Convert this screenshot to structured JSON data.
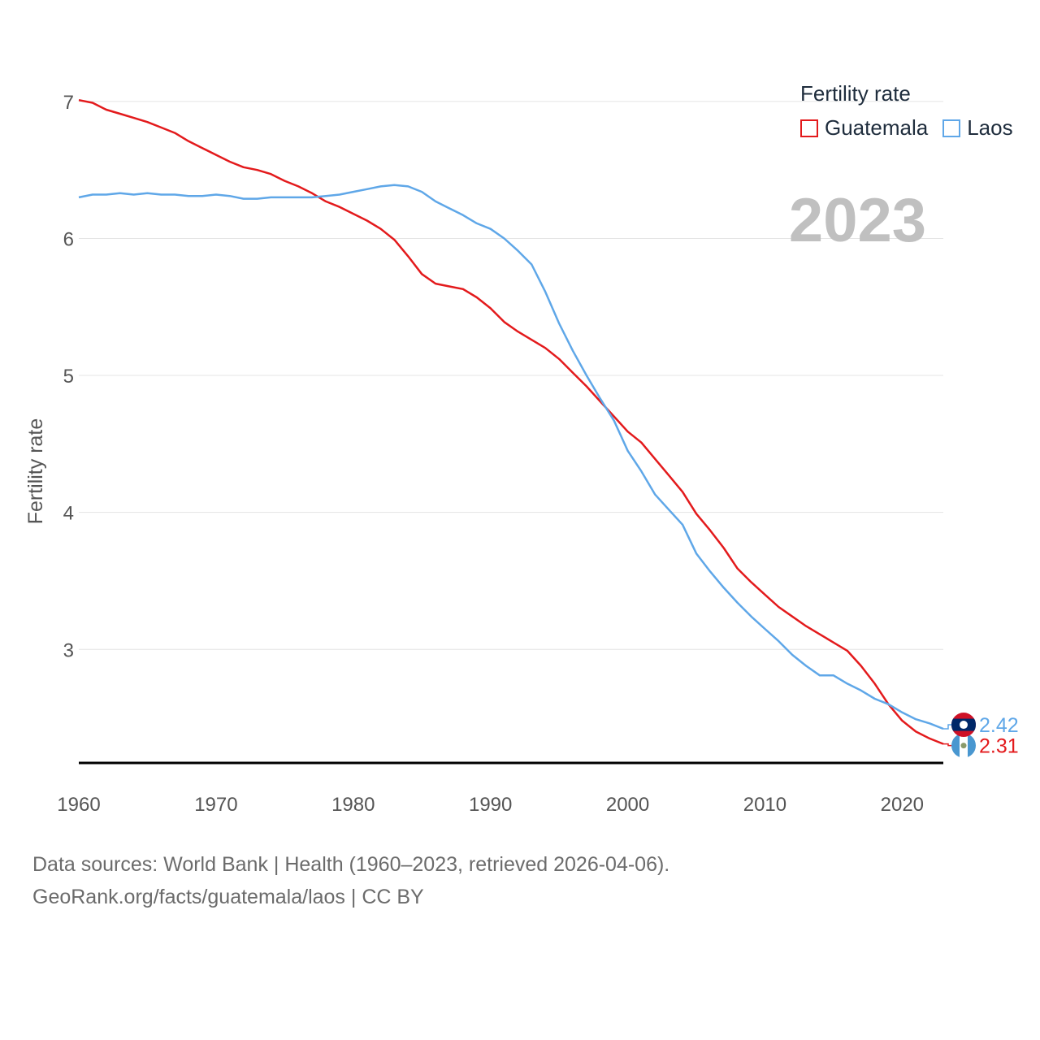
{
  "legend": {
    "title": "Fertility rate"
  },
  "year_stamp": "2023",
  "source": {
    "line1": "Data sources: World Bank | Health (1960–2023, retrieved 2026-04-06).",
    "line2": "GeoRank.org/facts/guatemala/laos | CC BY"
  },
  "chart_data": {
    "type": "line",
    "title": "Fertility rate",
    "xlabel": "",
    "ylabel": "Fertility rate",
    "xlim": [
      1960,
      2023
    ],
    "ylim": [
      2.1,
      7.1
    ],
    "x_ticks": [
      1960,
      1970,
      1980,
      1990,
      2000,
      2010,
      2020
    ],
    "y_ticks": [
      3,
      4,
      5,
      6,
      7
    ],
    "grid": true,
    "legend_position": "top-right",
    "x": [
      1960,
      1961,
      1962,
      1963,
      1964,
      1965,
      1966,
      1967,
      1968,
      1969,
      1970,
      1971,
      1972,
      1973,
      1974,
      1975,
      1976,
      1977,
      1978,
      1979,
      1980,
      1981,
      1982,
      1983,
      1984,
      1985,
      1986,
      1987,
      1988,
      1989,
      1990,
      1991,
      1992,
      1993,
      1994,
      1995,
      1996,
      1997,
      1998,
      1999,
      2000,
      2001,
      2002,
      2003,
      2004,
      2005,
      2006,
      2007,
      2008,
      2009,
      2010,
      2011,
      2012,
      2013,
      2014,
      2015,
      2016,
      2017,
      2018,
      2019,
      2020,
      2021,
      2022,
      2023
    ],
    "series": [
      {
        "name": "Guatemala",
        "color": "#e31a1c",
        "end_label": "2.31",
        "values": [
          7.01,
          6.99,
          6.94,
          6.91,
          6.88,
          6.85,
          6.81,
          6.77,
          6.71,
          6.66,
          6.61,
          6.56,
          6.52,
          6.5,
          6.47,
          6.42,
          6.38,
          6.33,
          6.27,
          6.23,
          6.18,
          6.13,
          6.07,
          5.99,
          5.87,
          5.74,
          5.67,
          5.65,
          5.63,
          5.57,
          5.49,
          5.39,
          5.32,
          5.26,
          5.2,
          5.12,
          5.02,
          4.92,
          4.81,
          4.7,
          4.59,
          4.51,
          4.39,
          4.27,
          4.15,
          3.99,
          3.87,
          3.74,
          3.59,
          3.49,
          3.4,
          3.31,
          3.24,
          3.17,
          3.11,
          3.05,
          2.99,
          2.88,
          2.75,
          2.6,
          2.48,
          2.4,
          2.35,
          2.31
        ]
      },
      {
        "name": "Laos",
        "color": "#5fa7e8",
        "end_label": "2.42",
        "values": [
          6.3,
          6.32,
          6.32,
          6.33,
          6.32,
          6.33,
          6.32,
          6.32,
          6.31,
          6.31,
          6.32,
          6.31,
          6.29,
          6.29,
          6.3,
          6.3,
          6.3,
          6.3,
          6.31,
          6.32,
          6.34,
          6.36,
          6.38,
          6.39,
          6.38,
          6.34,
          6.27,
          6.22,
          6.17,
          6.11,
          6.07,
          6.0,
          5.91,
          5.81,
          5.61,
          5.38,
          5.18,
          5.0,
          4.83,
          4.67,
          4.45,
          4.3,
          4.13,
          4.02,
          3.91,
          3.7,
          3.57,
          3.45,
          3.34,
          3.24,
          3.15,
          3.06,
          2.96,
          2.88,
          2.81,
          2.81,
          2.75,
          2.7,
          2.64,
          2.6,
          2.54,
          2.49,
          2.46,
          2.42
        ]
      }
    ]
  }
}
